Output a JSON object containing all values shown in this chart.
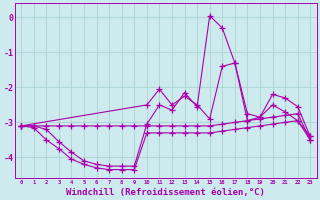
{
  "background_color": "#cdeaee",
  "grid_color": "#a8d5cc",
  "line_color": "#aa00aa",
  "marker": "+",
  "markersize": 4,
  "linewidth": 0.8,
  "xlabel": "Windchill (Refroidissement éolien,°C)",
  "xlabel_fontsize": 6.5,
  "ylabel_ticks": [
    0,
    -1,
    -2,
    -3,
    -4
  ],
  "xlim": [
    -0.5,
    23.5
  ],
  "ylim": [
    -4.6,
    0.4
  ],
  "curve1_x": [
    0,
    1,
    2,
    3,
    4,
    5,
    6,
    7,
    8,
    9,
    10,
    11,
    12,
    13,
    14,
    15,
    16,
    17,
    18,
    19,
    20,
    21,
    22,
    23
  ],
  "curve1_y": [
    -3.1,
    -3.15,
    -3.5,
    -3.75,
    -4.05,
    -4.2,
    -4.3,
    -4.35,
    -4.35,
    -4.35,
    -3.3,
    -3.3,
    -3.3,
    -3.3,
    -3.3,
    -3.3,
    -3.25,
    -3.2,
    -3.15,
    -3.1,
    -3.05,
    -3.0,
    -2.95,
    -3.5
  ],
  "curve2_x": [
    0,
    1,
    2,
    3,
    4,
    5,
    6,
    7,
    8,
    9,
    10,
    11,
    12,
    13,
    14,
    15,
    16,
    17,
    18,
    19,
    20,
    21,
    22,
    23
  ],
  "curve2_y": [
    -3.1,
    -3.1,
    -3.2,
    -3.55,
    -3.85,
    -4.1,
    -4.2,
    -4.25,
    -4.25,
    -4.25,
    -3.05,
    -2.5,
    -2.65,
    -2.15,
    -2.55,
    0.05,
    -0.3,
    -1.3,
    -2.95,
    -2.85,
    -2.2,
    -2.3,
    -2.55,
    -3.4
  ],
  "curve3_x": [
    0,
    10,
    11,
    12,
    13,
    14,
    15,
    16,
    17,
    18,
    19,
    20,
    21,
    22,
    23
  ],
  "curve3_y": [
    -3.1,
    -2.5,
    -2.05,
    -2.5,
    -2.25,
    -2.5,
    -2.9,
    -1.4,
    -1.3,
    -2.75,
    -2.85,
    -2.5,
    -2.7,
    -2.95,
    -3.4
  ],
  "curve4_x": [
    0,
    1,
    2,
    3,
    4,
    5,
    6,
    7,
    8,
    9,
    10,
    11,
    12,
    13,
    14,
    15,
    16,
    17,
    18,
    19,
    20,
    21,
    22,
    23
  ],
  "curve4_y": [
    -3.1,
    -3.1,
    -3.1,
    -3.1,
    -3.1,
    -3.1,
    -3.1,
    -3.1,
    -3.1,
    -3.1,
    -3.1,
    -3.1,
    -3.1,
    -3.1,
    -3.1,
    -3.1,
    -3.05,
    -3.0,
    -2.95,
    -2.9,
    -2.85,
    -2.8,
    -2.75,
    -3.5
  ]
}
